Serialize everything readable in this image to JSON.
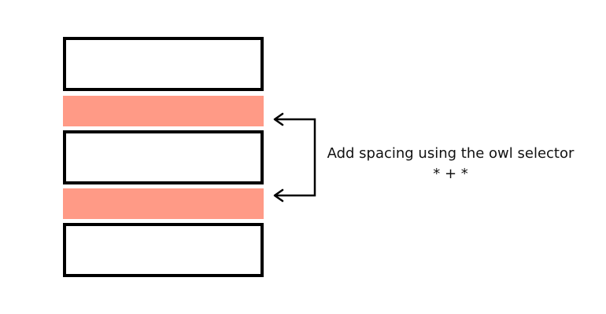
{
  "caption": {
    "line1": "Add spacing using the owl selector",
    "line2": "* + *"
  },
  "colors": {
    "box_border": "#000000",
    "spacing_fill": "#ff9a86",
    "arrow": "#000000"
  }
}
